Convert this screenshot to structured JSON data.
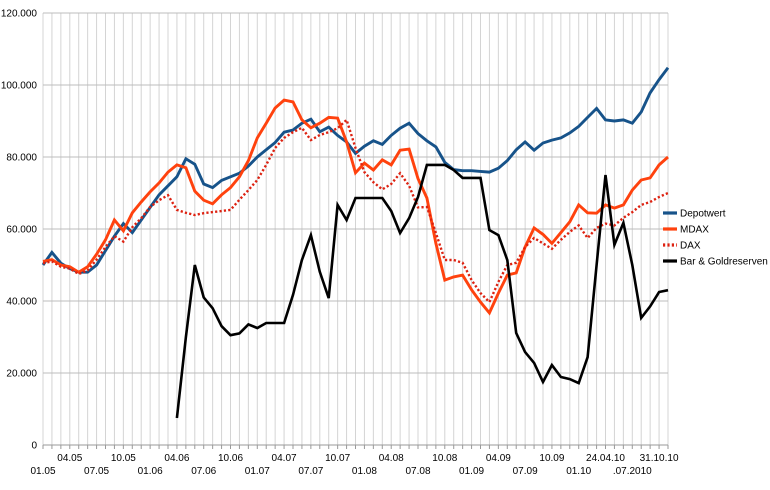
{
  "chart_data": {
    "type": "line",
    "title": "",
    "background": "#ffffff",
    "grid": true,
    "x_unit": "months from 01.2005 to 10.2010",
    "months_total": 71,
    "y_axis": {
      "min": 0,
      "max": 120000,
      "step": 20000,
      "labels": [
        "0",
        "20.000",
        "40.000",
        "60.000",
        "80.000",
        "100.000",
        "120.000"
      ]
    },
    "x_axis": {
      "ticks": [
        {
          "label": "01.05",
          "month": 0,
          "row": 2
        },
        {
          "label": "04.05",
          "month": 3,
          "row": 1
        },
        {
          "label": "07.05",
          "month": 6,
          "row": 2
        },
        {
          "label": "10.05",
          "month": 9,
          "row": 1
        },
        {
          "label": "01.06",
          "month": 12,
          "row": 2
        },
        {
          "label": "04.06",
          "month": 15,
          "row": 1
        },
        {
          "label": "07.06",
          "month": 18,
          "row": 2
        },
        {
          "label": "10.06",
          "month": 21,
          "row": 1
        },
        {
          "label": "01.07",
          "month": 24,
          "row": 2
        },
        {
          "label": "04.07",
          "month": 27,
          "row": 1
        },
        {
          "label": "07.07",
          "month": 30,
          "row": 2
        },
        {
          "label": "10.07",
          "month": 33,
          "row": 1
        },
        {
          "label": "01.08",
          "month": 36,
          "row": 2
        },
        {
          "label": "04.08",
          "month": 39,
          "row": 1
        },
        {
          "label": "07.08",
          "month": 42,
          "row": 2
        },
        {
          "label": "10.08",
          "month": 45,
          "row": 1
        },
        {
          "label": "01.09",
          "month": 48,
          "row": 2
        },
        {
          "label": "04.09",
          "month": 51,
          "row": 1
        },
        {
          "label": "07.09",
          "month": 54,
          "row": 2
        },
        {
          "label": "10.09",
          "month": 57,
          "row": 1
        },
        {
          "label": "01.10",
          "month": 60,
          "row": 2
        },
        {
          "label": "24.04.10",
          "month": 63,
          "row": 1
        },
        {
          "label": ".07.2010",
          "month": 66,
          "row": 2
        },
        {
          "label": "31.10.10",
          "month": 69,
          "row": 1
        }
      ]
    },
    "legend": {
      "position": "right"
    },
    "colors": {
      "grid_vertical": "#d4d4d4",
      "grid_horizontal": "#bcbcbc",
      "axis": "#999999"
    },
    "series": [
      {
        "name": "Depotwert",
        "color": "#17538A",
        "style": "solid",
        "width": 2.9,
        "start_index": 0,
        "values": [
          50000,
          53500,
          50500,
          49000,
          48000,
          48000,
          50000,
          54000,
          58000,
          61500,
          59000,
          62500,
          66000,
          69500,
          72000,
          74500,
          79500,
          78000,
          72500,
          71500,
          73500,
          74500,
          75500,
          77500,
          80000,
          82000,
          84000,
          86900,
          87500,
          89400,
          90500,
          87000,
          88300,
          86000,
          84200,
          81000,
          83000,
          84500,
          83500,
          86000,
          88000,
          89400,
          86500,
          84500,
          82800,
          78500,
          76500,
          76200,
          76200,
          76000,
          75800,
          76900,
          79000,
          82000,
          84200,
          81900,
          83900,
          84700,
          85300,
          86700,
          88500,
          91000,
          93500,
          90300,
          90000,
          90300,
          89400,
          92500,
          97800,
          101500,
          104800
        ]
      },
      {
        "name": "MDAX",
        "color": "#FF420E",
        "style": "solid",
        "width": 2.9,
        "start_index": 0,
        "values": [
          51000,
          51500,
          50000,
          49500,
          48000,
          49500,
          53000,
          57000,
          62500,
          59500,
          64500,
          67500,
          70300,
          72800,
          75800,
          77800,
          77000,
          70500,
          68000,
          67000,
          69500,
          71500,
          74500,
          79000,
          85300,
          89400,
          93600,
          95800,
          95300,
          90300,
          88100,
          89400,
          91000,
          90800,
          84200,
          75600,
          78300,
          76400,
          79200,
          77800,
          81900,
          82200,
          74000,
          68600,
          56000,
          45800,
          46700,
          47200,
          43100,
          39700,
          36700,
          42200,
          47200,
          47800,
          55000,
          60300,
          58500,
          56000,
          59000,
          62000,
          66700,
          64500,
          64400,
          66700,
          65800,
          66700,
          70800,
          73600,
          74200,
          77800,
          80000
        ]
      },
      {
        "name": "DAX",
        "color": "#DD2211",
        "style": "dotted",
        "width": 2.4,
        "start_index": 0,
        "values": [
          50500,
          51000,
          49500,
          49000,
          47500,
          48500,
          51500,
          55000,
          58000,
          56500,
          60500,
          63000,
          66100,
          68000,
          69400,
          65300,
          64500,
          63900,
          64400,
          64700,
          65000,
          65300,
          68100,
          70800,
          73600,
          77800,
          82500,
          85300,
          86900,
          88100,
          84700,
          86100,
          86900,
          88000,
          90300,
          82500,
          75800,
          73000,
          71000,
          72500,
          75500,
          72000,
          66000,
          66100,
          58900,
          51400,
          51400,
          50600,
          45800,
          42200,
          39700,
          45300,
          50000,
          50600,
          55000,
          57500,
          56000,
          54500,
          57000,
          59200,
          61000,
          57500,
          60300,
          61500,
          61000,
          63100,
          64700,
          66700,
          67500,
          68900,
          70000
        ]
      },
      {
        "name": "Bar & Goldreserven",
        "color": "#000000",
        "style": "solid",
        "width": 2.6,
        "start_index": 15,
        "values": [
          7500,
          30000,
          50000,
          41000,
          38000,
          33000,
          30500,
          31000,
          33500,
          32500,
          33900,
          33900,
          33900,
          41700,
          51400,
          58300,
          48100,
          40800,
          66700,
          62500,
          68600,
          68600,
          68600,
          68600,
          65000,
          58900,
          63000,
          68900,
          77800,
          77800,
          77800,
          76400,
          74200,
          74200,
          74200,
          59700,
          58300,
          51400,
          31100,
          25800,
          22800,
          17500,
          22200,
          18900,
          18300,
          17200,
          24400,
          50000,
          75000,
          55600,
          61700,
          50000,
          35300,
          38500,
          42500,
          43000
        ]
      }
    ]
  }
}
